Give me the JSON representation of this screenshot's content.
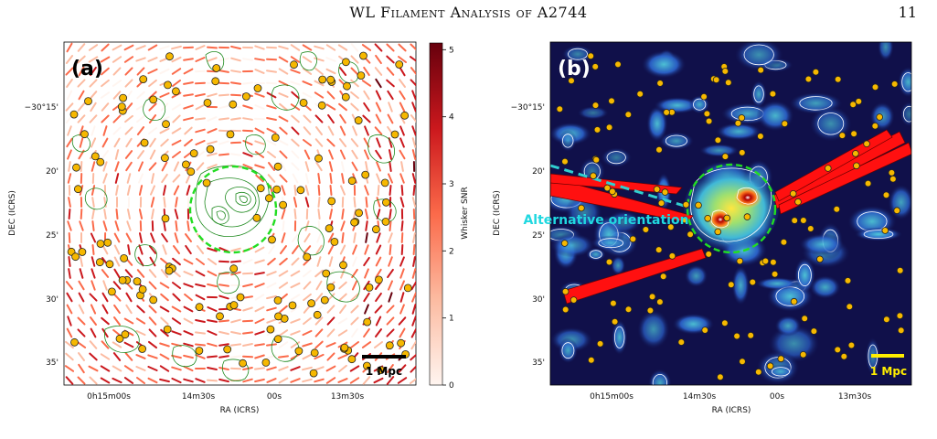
{
  "header": {
    "title": "WL Filament Analysis of A2744",
    "page_number": "11"
  },
  "panel_a": {
    "letter": "(a)",
    "scale_bar": "1 Mpc",
    "colorbar": {
      "label": "Whisker SNR",
      "ticks": [
        "0",
        "1",
        "2",
        "3",
        "4",
        "5"
      ],
      "range": [
        0,
        5.1
      ],
      "colors": [
        "#fff5f0",
        "#fcbba1",
        "#fb6a4a",
        "#cb181d",
        "#67000d"
      ]
    },
    "x_ticks": [
      "0h15m00s",
      "14m30s",
      "00s",
      "13m30s"
    ],
    "y_ticks": [
      "−30°15'",
      "20'",
      "25'",
      "30'",
      "35'"
    ],
    "xlabel": "RA (ICRS)",
    "ylabel": "DEC (ICRS)"
  },
  "panel_b": {
    "letter": "(b)",
    "scale_bar": "1 Mpc",
    "annotation": "Alternative orientation",
    "x_ticks": [
      "0h15m00s",
      "14m30s",
      "00s",
      "13m30s"
    ],
    "y_ticks": [
      "−30°15'",
      "20'",
      "25'",
      "30'",
      "35'"
    ],
    "xlabel": "RA (ICRS)",
    "ylabel": "DEC (ICRS)"
  },
  "colors": {
    "circle": "#22dd22",
    "galaxy": "#f6b800",
    "filament": "#ff1010",
    "alt_line": "#30d0d0",
    "annotation": "#20d8e0",
    "scale_bar_b": "#ffee00",
    "contour_a": "#1f8a1f",
    "background_b": "#10104a"
  }
}
